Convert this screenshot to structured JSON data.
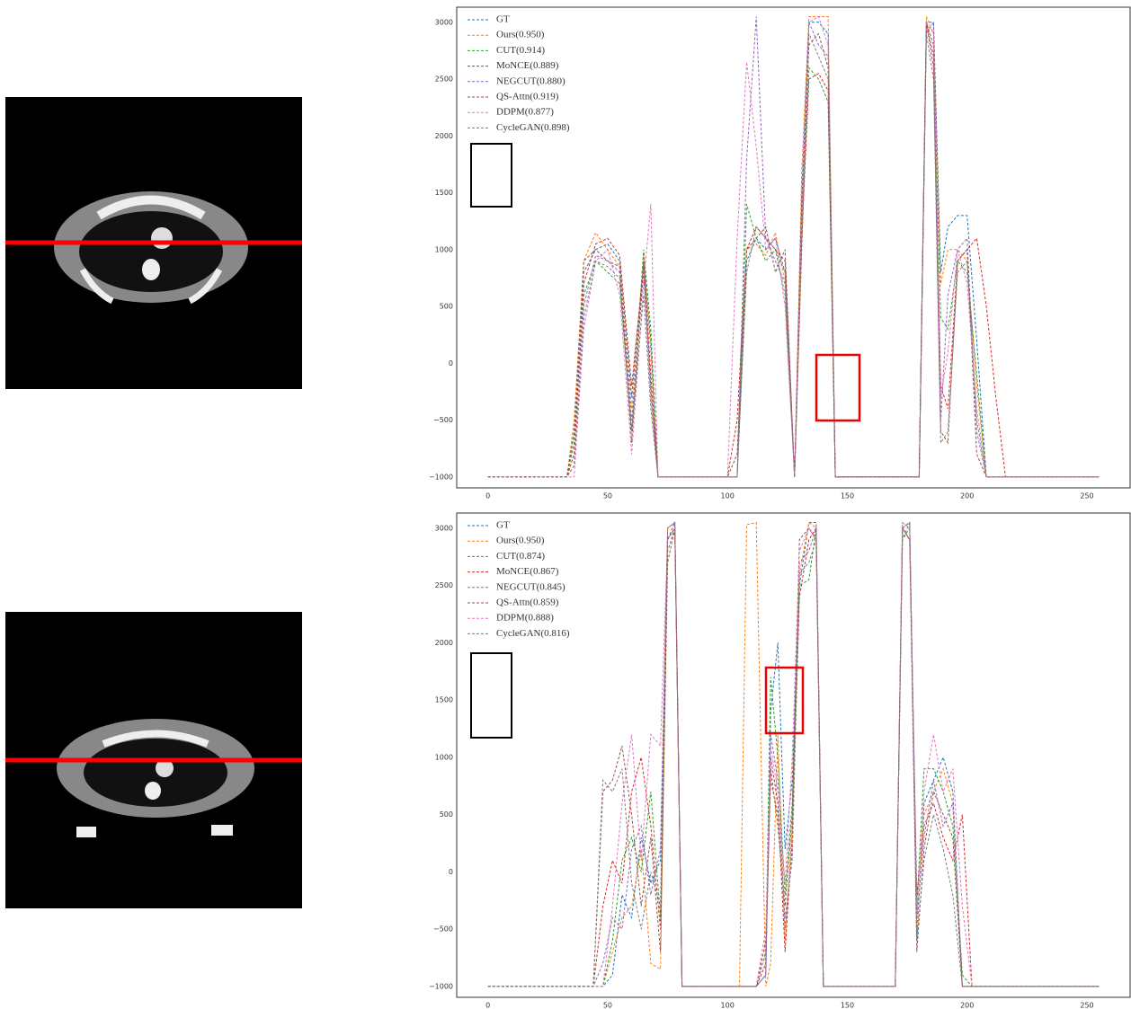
{
  "chart_data": [
    {
      "type": "line",
      "xlim": [
        -13,
        268
      ],
      "ylim": [
        -1096,
        3133
      ],
      "xticks": [
        0,
        50,
        100,
        150,
        200,
        250
      ],
      "yticks": [
        {
          "value": -1000,
          "label": "−1000"
        },
        {
          "value": -500,
          "label": "−500"
        },
        0,
        500,
        1000,
        1500,
        2000,
        2500,
        3000
      ],
      "legend": "upper left",
      "x": [
        0,
        33,
        36,
        40,
        45,
        50,
        55,
        60,
        65,
        68,
        71,
        100,
        104,
        108,
        112,
        116,
        120,
        124,
        128,
        131,
        134,
        138,
        142,
        145,
        148,
        180,
        183,
        186,
        189,
        192,
        196,
        200,
        204,
        208,
        212,
        216,
        255
      ],
      "series": [
        {
          "name": "GT",
          "color": "#1f77b4",
          "values": [
            -1000,
            -1000,
            -600,
            800,
            1000,
            1050,
            900,
            -300,
            900,
            200,
            -1000,
            -1000,
            -1000,
            900,
            1100,
            1000,
            1100,
            800,
            -1000,
            1500,
            3000,
            3000,
            2900,
            -1000,
            -1000,
            -1000,
            3000,
            3000,
            800,
            1200,
            1300,
            1300,
            200,
            -1000,
            -1000,
            -1000,
            -1000
          ]
        },
        {
          "name": "Ours(0.950)",
          "color": "#ff7f0e",
          "values": [
            -1000,
            -1000,
            -500,
            900,
            1150,
            1000,
            850,
            -400,
            950,
            100,
            -1000,
            -1000,
            -1000,
            1000,
            1050,
            950,
            1150,
            700,
            -1000,
            1700,
            3050,
            3050,
            3050,
            -1000,
            -1000,
            -1000,
            3050,
            2900,
            700,
            1000,
            1000,
            900,
            -200,
            -1000,
            -1000,
            -1000,
            -1000
          ]
        },
        {
          "name": "CUT(0.914)",
          "color": "#2ca02c",
          "values": [
            -1000,
            -1000,
            -700,
            600,
            900,
            800,
            700,
            -600,
            1000,
            300,
            -1000,
            -1000,
            -1000,
            1400,
            1100,
            900,
            1000,
            600,
            -1000,
            1200,
            2600,
            2500,
            2300,
            -1000,
            -1000,
            -1000,
            3000,
            2800,
            400,
            300,
            900,
            800,
            -100,
            -1000,
            -1000,
            -1000,
            -1000
          ]
        },
        {
          "name": "MoNCE(0.889)",
          "color": "#d62728",
          "values": [
            -1000,
            -1000,
            -800,
            700,
            1050,
            1100,
            950,
            -200,
            850,
            -200,
            -1000,
            -1000,
            -500,
            1000,
            1200,
            1100,
            1000,
            900,
            -1000,
            1100,
            2500,
            2550,
            2400,
            -1000,
            -1000,
            -1000,
            3000,
            2700,
            -200,
            -400,
            900,
            1000,
            1100,
            500,
            -300,
            -1000,
            -1000
          ]
        },
        {
          "name": "NEGCUT(0.880)",
          "color": "#9467bd",
          "values": [
            -1000,
            -1000,
            -900,
            500,
            950,
            900,
            800,
            -500,
            800,
            -300,
            -1000,
            -1000,
            -1000,
            1800,
            3050,
            1100,
            900,
            700,
            -1000,
            1300,
            3000,
            2800,
            2700,
            -1000,
            -1000,
            -1000,
            2900,
            3000,
            -500,
            600,
            1000,
            1100,
            -600,
            -1000,
            -1000,
            -1000,
            -1000
          ]
        },
        {
          "name": "QS-Attn(0.919)",
          "color": "#8c564b",
          "values": [
            -1000,
            -1000,
            -600,
            900,
            1000,
            900,
            850,
            -700,
            900,
            -100,
            -1000,
            -1000,
            -800,
            1000,
            1100,
            1200,
            800,
            1000,
            -1000,
            1400,
            2800,
            2900,
            2600,
            -1000,
            -1000,
            -1000,
            3000,
            2600,
            -600,
            -700,
            900,
            1000,
            -800,
            -1000,
            -1000,
            -1000,
            -1000
          ]
        },
        {
          "name": "DDPM(0.877)",
          "color": "#e377c2",
          "values": [
            -1000,
            -1000,
            -1000,
            300,
            900,
            1000,
            600,
            -800,
            700,
            1400,
            -1000,
            -1000,
            1100,
            2650,
            1900,
            1000,
            1100,
            500,
            -1000,
            1300,
            3000,
            3050,
            2800,
            -1000,
            -1000,
            -1000,
            3000,
            2900,
            -300,
            100,
            1000,
            700,
            -400,
            -1000,
            -1000,
            -1000,
            -1000
          ]
        },
        {
          "name": "CycleGAN(0.898)",
          "color": "#7f7f7f",
          "values": [
            -1000,
            -1000,
            -900,
            400,
            900,
            850,
            750,
            -600,
            600,
            -400,
            -1000,
            -1000,
            -1000,
            800,
            1200,
            1100,
            1000,
            800,
            -1000,
            1000,
            2900,
            2700,
            2500,
            -1000,
            -1000,
            -1000,
            2900,
            2500,
            -700,
            -600,
            800,
            900,
            -500,
            -1000,
            -1000,
            -1000,
            -1000
          ]
        }
      ]
    },
    {
      "type": "line",
      "xlim": [
        -13,
        268
      ],
      "ylim": [
        -1095,
        3132
      ],
      "xticks": [
        0,
        50,
        100,
        150,
        200,
        250
      ],
      "yticks": [
        {
          "value": -1000,
          "label": "−1000"
        },
        {
          "value": -500,
          "label": "−500"
        },
        0,
        500,
        1000,
        1500,
        2000,
        2500,
        3000
      ],
      "legend": "upper left",
      "x": [
        0,
        44,
        48,
        52,
        56,
        60,
        64,
        68,
        72,
        75,
        78,
        81,
        105,
        108,
        112,
        116,
        118,
        121,
        124,
        127,
        130,
        134,
        137,
        140,
        170,
        173,
        176,
        179,
        182,
        186,
        190,
        194,
        198,
        202,
        206,
        210,
        255
      ],
      "series": [
        {
          "name": "GT",
          "color": "#1f77b4",
          "values": [
            -1000,
            -1000,
            -1000,
            -900,
            -200,
            -400,
            300,
            -100,
            100,
            2900,
            3050,
            -1000,
            -1000,
            -1000,
            -1000,
            -900,
            1400,
            2000,
            200,
            800,
            2500,
            3050,
            3050,
            -1000,
            -1000,
            3000,
            3050,
            -600,
            600,
            800,
            1000,
            700,
            -1000,
            -1000,
            -1000,
            -1000,
            -1000
          ]
        },
        {
          "name": "Ours(0.950)",
          "color": "#ff7f0e",
          "values": [
            -1000,
            -1000,
            -1000,
            -700,
            -400,
            -300,
            200,
            -800,
            -850,
            3000,
            3050,
            -1000,
            -1000,
            3030,
            3050,
            -1000,
            -800,
            1200,
            -600,
            400,
            2600,
            3050,
            3000,
            -1000,
            -1000,
            3050,
            3000,
            -500,
            500,
            700,
            900,
            600,
            -1000,
            -1000,
            -1000,
            -1000,
            -1000
          ]
        },
        {
          "name": "CUT(0.874)",
          "color": "#2ca02c",
          "values": [
            -1000,
            -1000,
            -1000,
            -600,
            100,
            300,
            0,
            700,
            -400,
            2800,
            3000,
            -1000,
            -1000,
            -1000,
            -1000,
            -700,
            1700,
            1000,
            -200,
            600,
            2500,
            2550,
            3000,
            -1000,
            -1000,
            2900,
            3000,
            -300,
            900,
            900,
            700,
            400,
            -900,
            -1000,
            -1000,
            -1000,
            -1000
          ]
        },
        {
          "name": "MoNCE(0.867)",
          "color": "#d62728",
          "values": [
            -1000,
            -1000,
            -300,
            100,
            -100,
            700,
            1000,
            400,
            -500,
            2900,
            3000,
            -1000,
            -1000,
            -1000,
            -1000,
            -800,
            1000,
            600,
            -700,
            300,
            2400,
            2900,
            3000,
            -1000,
            -1000,
            3000,
            2900,
            -200,
            400,
            600,
            300,
            100,
            500,
            -1000,
            -1000,
            -1000,
            -1000
          ]
        },
        {
          "name": "NEGCUT(0.845)",
          "color": "#9467bd",
          "values": [
            -1000,
            -1000,
            -800,
            -400,
            -500,
            200,
            400,
            -200,
            200,
            3000,
            3050,
            -1000,
            -1000,
            -1000,
            -1000,
            -900,
            1200,
            800,
            -500,
            200,
            2700,
            2800,
            3000,
            -1000,
            -1000,
            3000,
            3050,
            -400,
            300,
            800,
            400,
            600,
            -1000,
            -1000,
            -1000,
            -1000,
            -1000
          ]
        },
        {
          "name": "QS-Attn(0.859)",
          "color": "#8c564b",
          "values": [
            -1000,
            -1000,
            700,
            800,
            1100,
            500,
            -300,
            300,
            -700,
            2700,
            3000,
            -1000,
            -1000,
            -1000,
            -1000,
            -600,
            900,
            400,
            -300,
            500,
            2900,
            3000,
            2900,
            -1000,
            -1000,
            3000,
            2900,
            -700,
            200,
            700,
            500,
            300,
            -1000,
            -1000,
            -1000,
            -1000,
            -1000
          ]
        },
        {
          "name": "DDPM(0.888)",
          "color": "#e377c2",
          "values": [
            -1000,
            -1000,
            -1000,
            -300,
            600,
            1200,
            100,
            1200,
            1100,
            2900,
            3000,
            -1000,
            -1000,
            -1000,
            -1000,
            -500,
            1100,
            700,
            -100,
            1000,
            2800,
            3000,
            2900,
            -1000,
            -1000,
            3050,
            3000,
            -400,
            700,
            1200,
            700,
            900,
            -300,
            -1000,
            -1000,
            -1000,
            -1000
          ]
        },
        {
          "name": "CycleGAN(0.816)",
          "color": "#7f7f7f",
          "values": [
            -1000,
            -1000,
            800,
            700,
            900,
            -100,
            -500,
            0,
            -300,
            3000,
            3050,
            -1000,
            -1000,
            -1000,
            -1000,
            -700,
            800,
            500,
            -400,
            100,
            2600,
            2700,
            2900,
            -1000,
            -1000,
            2900,
            3050,
            -600,
            100,
            500,
            200,
            -200,
            -1000,
            -1000,
            -1000,
            -1000,
            -1000
          ]
        }
      ]
    }
  ]
}
